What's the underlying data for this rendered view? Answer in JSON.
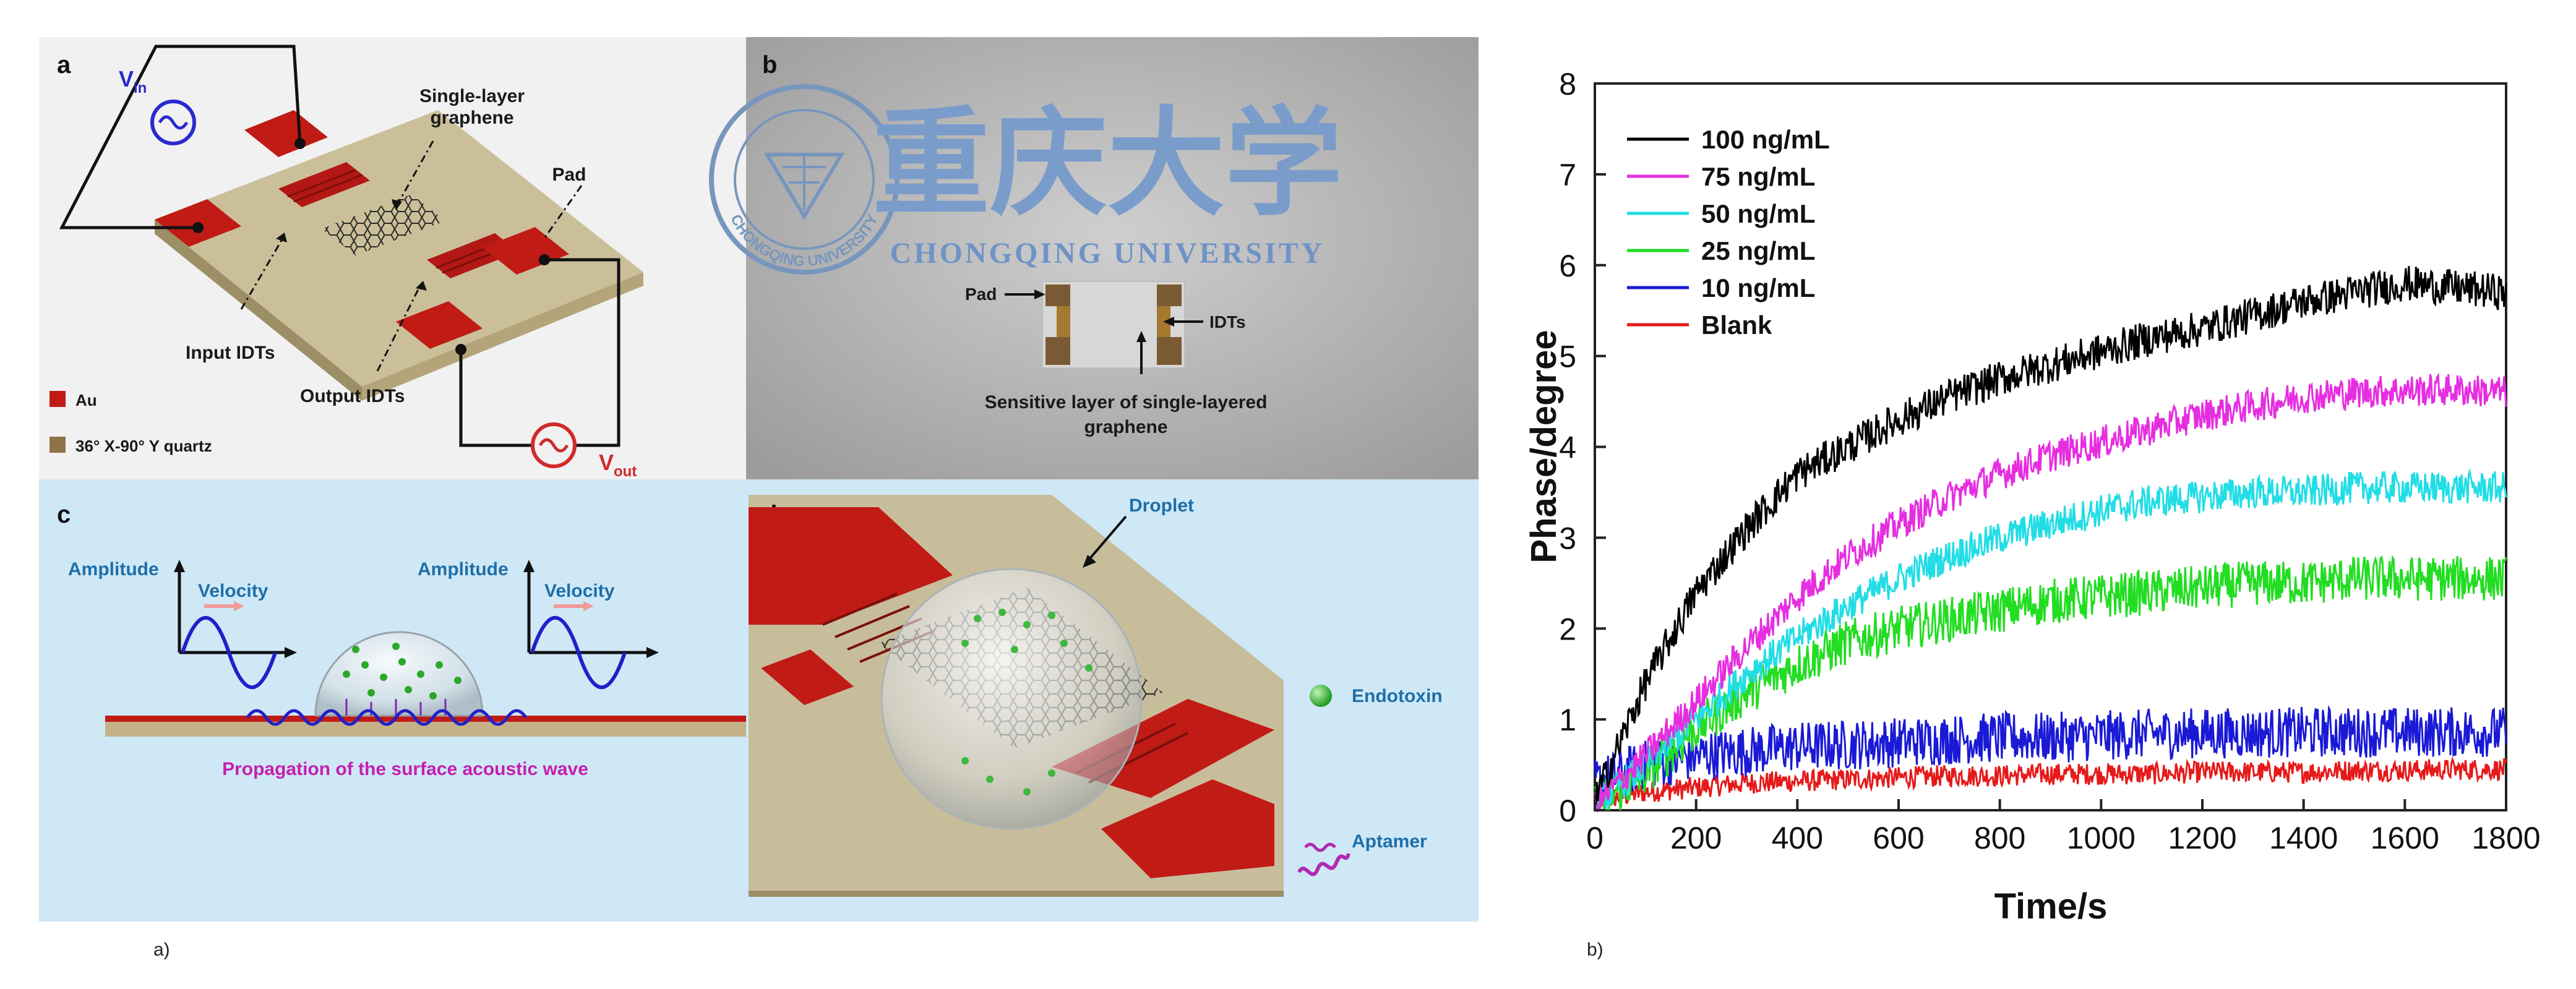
{
  "panel_a": {
    "tag": "a",
    "vin": "V",
    "vin_sub": "in",
    "vout": "V",
    "vout_sub": "out",
    "label_graphene": [
      "Single-layer",
      "graphene"
    ],
    "label_pad": "Pad",
    "label_input_idts": "Input IDTs",
    "label_output_idts": "Output IDTs",
    "legend": [
      {
        "label": "Au",
        "color": "#c11b16"
      },
      {
        "label": "36° X-90° Y quartz",
        "color": "#8f7348"
      }
    ]
  },
  "panel_b": {
    "tag": "b",
    "chinese_title": "重庆大学",
    "university": "CHONGQING UNIVERSITY",
    "seal_text": "CHONGQING UNIVERSITY",
    "label_pad": "Pad",
    "label_idts": "IDTs",
    "label_sensitive": [
      "Sensitive layer of single-layered",
      "graphene"
    ]
  },
  "panel_c": {
    "tag": "c",
    "amplitude_1": "Amplitude",
    "velocity_1": "Velocity",
    "amplitude_2": "Amplitude",
    "velocity_2": "Velocity",
    "propagation": "Propagation of the surface acoustic wave"
  },
  "panel_d": {
    "tag": "d",
    "droplet": "Droplet",
    "endotoxin": "Endotoxin",
    "aptamer": "Aptamer"
  },
  "captions": {
    "left": "a)",
    "right": "b)"
  },
  "chart_data": {
    "type": "line",
    "title": "",
    "xlabel": "Time/s",
    "ylabel": "Phase/degree",
    "xlim": [
      0,
      1800
    ],
    "ylim": [
      0,
      8
    ],
    "xticks": [
      0,
      200,
      400,
      600,
      800,
      1000,
      1200,
      1400,
      1600,
      1800
    ],
    "yticks": [
      0,
      1,
      2,
      3,
      4,
      5,
      6,
      7,
      8
    ],
    "legend_position": "top-left",
    "x": [
      0,
      100,
      200,
      300,
      400,
      500,
      600,
      700,
      800,
      900,
      1000,
      1100,
      1200,
      1300,
      1400,
      1500,
      1600,
      1700,
      1800
    ],
    "series": [
      {
        "name": "100 ng/mL",
        "color": "#000000",
        "noise": 0.2,
        "values": [
          0.1,
          1.4,
          2.4,
          3.1,
          3.7,
          4.0,
          4.3,
          4.55,
          4.75,
          4.9,
          5.05,
          5.2,
          5.3,
          5.45,
          5.6,
          5.7,
          5.8,
          5.75,
          5.7
        ]
      },
      {
        "name": "75 ng/mL",
        "color": "#e62ee0",
        "noise": 0.18,
        "values": [
          0.05,
          0.6,
          1.2,
          1.8,
          2.35,
          2.8,
          3.15,
          3.45,
          3.7,
          3.9,
          4.05,
          4.2,
          4.35,
          4.45,
          4.55,
          4.6,
          4.62,
          4.63,
          4.6
        ]
      },
      {
        "name": "50 ng/mL",
        "color": "#22dde6",
        "noise": 0.18,
        "values": [
          0.05,
          0.5,
          1.0,
          1.5,
          1.9,
          2.25,
          2.55,
          2.8,
          3.0,
          3.15,
          3.3,
          3.4,
          3.45,
          3.5,
          3.5,
          3.55,
          3.55,
          3.55,
          3.55
        ]
      },
      {
        "name": "25 ng/mL",
        "color": "#22dd22",
        "noise": 0.25,
        "values": [
          0.05,
          0.4,
          0.9,
          1.3,
          1.6,
          1.85,
          2.0,
          2.1,
          2.2,
          2.3,
          2.35,
          2.4,
          2.45,
          2.5,
          2.5,
          2.55,
          2.55,
          2.55,
          2.55
        ]
      },
      {
        "name": "10 ng/mL",
        "color": "#1a1ad6",
        "noise": 0.28,
        "values": [
          0.3,
          0.5,
          0.6,
          0.65,
          0.7,
          0.72,
          0.75,
          0.78,
          0.8,
          0.8,
          0.82,
          0.84,
          0.85,
          0.85,
          0.86,
          0.86,
          0.86,
          0.86,
          0.86
        ]
      },
      {
        "name": "Blank",
        "color": "#e61a1a",
        "noise": 0.12,
        "values": [
          0.1,
          0.2,
          0.25,
          0.3,
          0.32,
          0.34,
          0.36,
          0.38,
          0.38,
          0.4,
          0.4,
          0.4,
          0.42,
          0.42,
          0.42,
          0.44,
          0.44,
          0.45,
          0.45
        ]
      }
    ]
  }
}
